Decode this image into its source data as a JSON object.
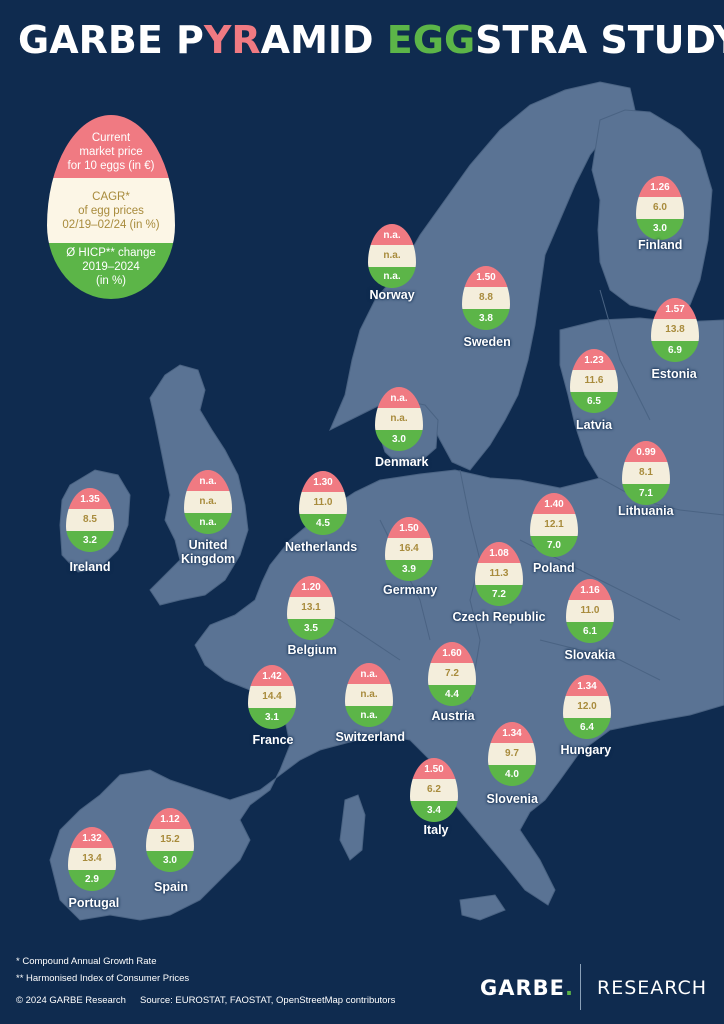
{
  "title": {
    "part1": "GARBE P",
    "part2": "YR",
    "part3": "AMID ",
    "part4": "EGG",
    "part5": "STRA STUDY"
  },
  "colors": {
    "background": "#0f2b4f",
    "land": "#5a7394",
    "price": "#f07a82",
    "cagr": "#f4eedc",
    "cagr_text": "#a88b3c",
    "hicp": "#5cb548"
  },
  "legend": {
    "price": "Current\nmarket price\nfor 10 eggs (in €)",
    "cagr": "CAGR*\nof egg prices\n02/19–02/24 (in %)",
    "hicp": "Ø HICP** change\n2019–2024\n(in %)"
  },
  "countries": [
    {
      "name": "Finland",
      "price": "1.26",
      "cagr": "6.0",
      "hicp": "3.0"
    },
    {
      "name": "Norway",
      "price": "n.a.",
      "cagr": "n.a.",
      "hicp": "n.a."
    },
    {
      "name": "Sweden",
      "price": "1.50",
      "cagr": "8.8",
      "hicp": "3.8"
    },
    {
      "name": "Estonia",
      "price": "1.57",
      "cagr": "13.8",
      "hicp": "6.9"
    },
    {
      "name": "Latvia",
      "price": "1.23",
      "cagr": "11.6",
      "hicp": "6.5"
    },
    {
      "name": "Denmark",
      "price": "n.a.",
      "cagr": "n.a.",
      "hicp": "3.0"
    },
    {
      "name": "Lithuania",
      "price": "0.99",
      "cagr": "8.1",
      "hicp": "7.1"
    },
    {
      "name": "Ireland",
      "price": "1.35",
      "cagr": "8.5",
      "hicp": "3.2"
    },
    {
      "name": "United\nKingdom",
      "price": "n.a.",
      "cagr": "n.a.",
      "hicp": "n.a."
    },
    {
      "name": "Netherlands",
      "price": "1.30",
      "cagr": "11.0",
      "hicp": "4.5"
    },
    {
      "name": "Germany",
      "price": "1.50",
      "cagr": "16.4",
      "hicp": "3.9"
    },
    {
      "name": "Poland",
      "price": "1.40",
      "cagr": "12.1",
      "hicp": "7.0"
    },
    {
      "name": "Czech Republic",
      "price": "1.08",
      "cagr": "11.3",
      "hicp": "7.2"
    },
    {
      "name": "Belgium",
      "price": "1.20",
      "cagr": "13.1",
      "hicp": "3.5"
    },
    {
      "name": "Slovakia",
      "price": "1.16",
      "cagr": "11.0",
      "hicp": "6.1"
    },
    {
      "name": "Austria",
      "price": "1.60",
      "cagr": "7.2",
      "hicp": "4.4"
    },
    {
      "name": "France",
      "price": "1.42",
      "cagr": "14.4",
      "hicp": "3.1"
    },
    {
      "name": "Switzerland",
      "price": "n.a.",
      "cagr": "n.a.",
      "hicp": "n.a."
    },
    {
      "name": "Hungary",
      "price": "1.34",
      "cagr": "12.0",
      "hicp": "6.4"
    },
    {
      "name": "Slovenia",
      "price": "1.34",
      "cagr": "9.7",
      "hicp": "4.0"
    },
    {
      "name": "Italy",
      "price": "1.50",
      "cagr": "6.2",
      "hicp": "3.4"
    },
    {
      "name": "Spain",
      "price": "1.12",
      "cagr": "15.2",
      "hicp": "3.0"
    },
    {
      "name": "Portugal",
      "price": "1.32",
      "cagr": "13.4",
      "hicp": "2.9"
    }
  ],
  "footnotes": {
    "cagr": "* Compound Annual Growth Rate",
    "hicp": "** Harmonised Index of Consumer Prices",
    "copyright": "© 2024 GARBE Research",
    "source": "Source: EUROSTAT, FAOSTAT, OpenStreetMap contributors"
  },
  "brand": {
    "name": "GARBE",
    "dot": ".",
    "division": "RESEARCH"
  }
}
